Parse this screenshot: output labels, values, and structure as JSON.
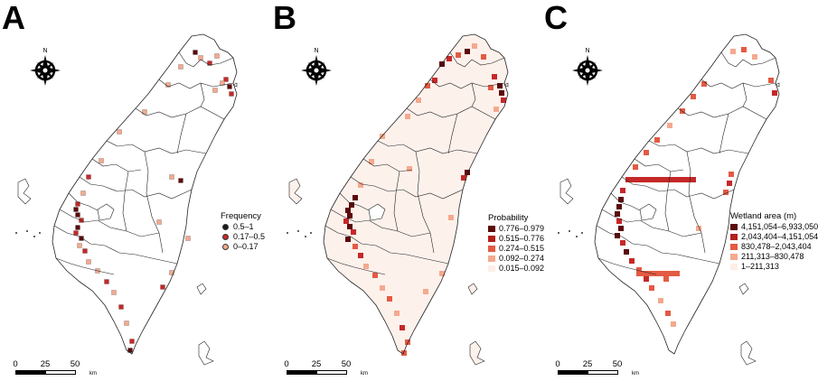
{
  "panels": [
    {
      "letter": "A",
      "legend": {
        "title": "Frequency",
        "style": "dot",
        "items": [
          {
            "label": "0.5–1",
            "color": "#1a1a1a"
          },
          {
            "label": "0.17–0.5",
            "color": "#c62828"
          },
          {
            "label": "0–0.17",
            "color": "#f5a98a"
          }
        ]
      }
    },
    {
      "letter": "B",
      "legend": {
        "title": "Probability",
        "style": "square",
        "items": [
          {
            "label": "0.776–0.979",
            "color": "#5c0a0a"
          },
          {
            "label": "0.515–0.776",
            "color": "#b3201c"
          },
          {
            "label": "0.274–0.515",
            "color": "#e45a43"
          },
          {
            "label": "0.092–0.274",
            "color": "#f4a98e"
          },
          {
            "label": "0.015–0.092",
            "color": "#fdeee6"
          }
        ]
      }
    },
    {
      "letter": "C",
      "legend": {
        "title": "Wetland area (m)",
        "style": "square",
        "items": [
          {
            "label": "4,151,054–6,933,050",
            "color": "#5c0a0a"
          },
          {
            "label": "2,043,404–4,151,054",
            "color": "#b3201c"
          },
          {
            "label": "830,478–2,043,404",
            "color": "#e45a43"
          },
          {
            "label": "211,313–830,478",
            "color": "#f4a98e"
          },
          {
            "label": "1–211,313",
            "color": "#fdeee6"
          }
        ]
      }
    }
  ],
  "compass_label": "N",
  "scale": {
    "ticks": [
      "0",
      "25",
      "50"
    ],
    "unit": "km"
  },
  "colors": {
    "boundary": "#222222",
    "land_fill_b": "#fdf1ec",
    "dark": "#5c0a0a",
    "red": "#c62828",
    "orange": "#e45a43",
    "light": "#f4a98e"
  }
}
